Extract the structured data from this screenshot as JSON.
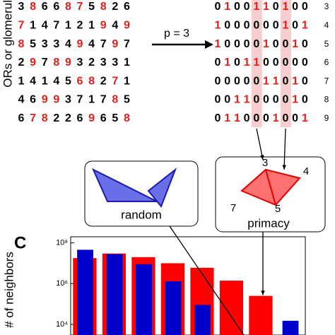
{
  "matrix_label": "ORs or glomeruli",
  "arrow_label": "p = 3",
  "row_numbers": [
    3,
    4,
    5,
    6,
    7,
    8,
    9
  ],
  "concentrations": [
    [
      3,
      8,
      6,
      6,
      8,
      7,
      5,
      8,
      2,
      6
    ],
    [
      7,
      1,
      4,
      7,
      1,
      2,
      1,
      9,
      4,
      9
    ],
    [
      8,
      5,
      3,
      3,
      4,
      9,
      4,
      7,
      9,
      7
    ],
    [
      2,
      9,
      7,
      8,
      9,
      3,
      2,
      3,
      3,
      1
    ],
    [
      1,
      4,
      1,
      4,
      5,
      6,
      8,
      2,
      7,
      1
    ],
    [
      4,
      6,
      9,
      9,
      3,
      7,
      1,
      7,
      8,
      5
    ],
    [
      6,
      7,
      8,
      2,
      2,
      6,
      9,
      6,
      5,
      8
    ]
  ],
  "binary": [
    [
      0,
      1,
      0,
      0,
      1,
      1,
      0,
      1,
      0,
      0
    ],
    [
      1,
      0,
      0,
      0,
      0,
      0,
      0,
      1,
      0,
      1
    ],
    [
      1,
      0,
      0,
      0,
      0,
      1,
      0,
      0,
      1,
      0
    ],
    [
      0,
      1,
      0,
      1,
      1,
      0,
      0,
      0,
      0,
      0
    ],
    [
      0,
      0,
      0,
      0,
      0,
      1,
      1,
      0,
      1,
      0
    ],
    [
      0,
      0,
      1,
      1,
      0,
      0,
      0,
      0,
      1,
      0
    ],
    [
      0,
      1,
      1,
      0,
      0,
      0,
      1,
      0,
      0,
      1
    ]
  ],
  "random_label": "random",
  "primacy_label": "primacy",
  "vertex_labels": [
    3,
    4,
    7,
    5
  ],
  "panel_label": "C",
  "chart_data": {
    "type": "bar",
    "y_label": "# of neighbors",
    "log_scale": true,
    "categories": [
      null,
      null,
      null,
      null,
      null,
      null,
      null,
      null
    ],
    "series": [
      {
        "color": "#ff0000",
        "values": [
          18000000,
          30000000,
          20000000,
          10000000,
          6000000,
          1400000,
          250000,
          null
        ]
      },
      {
        "color": "#0000cc",
        "values": [
          46000000,
          28000000,
          9000000,
          1300000,
          90000,
          null,
          null,
          15000
        ]
      }
    ],
    "ylim": [
      3000,
      200000000
    ],
    "yticks": [
      {
        "value": 10000,
        "label": "10⁴"
      },
      {
        "value": 1000000,
        "label": "10⁶"
      },
      {
        "value": 100000000,
        "label": "10⁸"
      }
    ]
  }
}
